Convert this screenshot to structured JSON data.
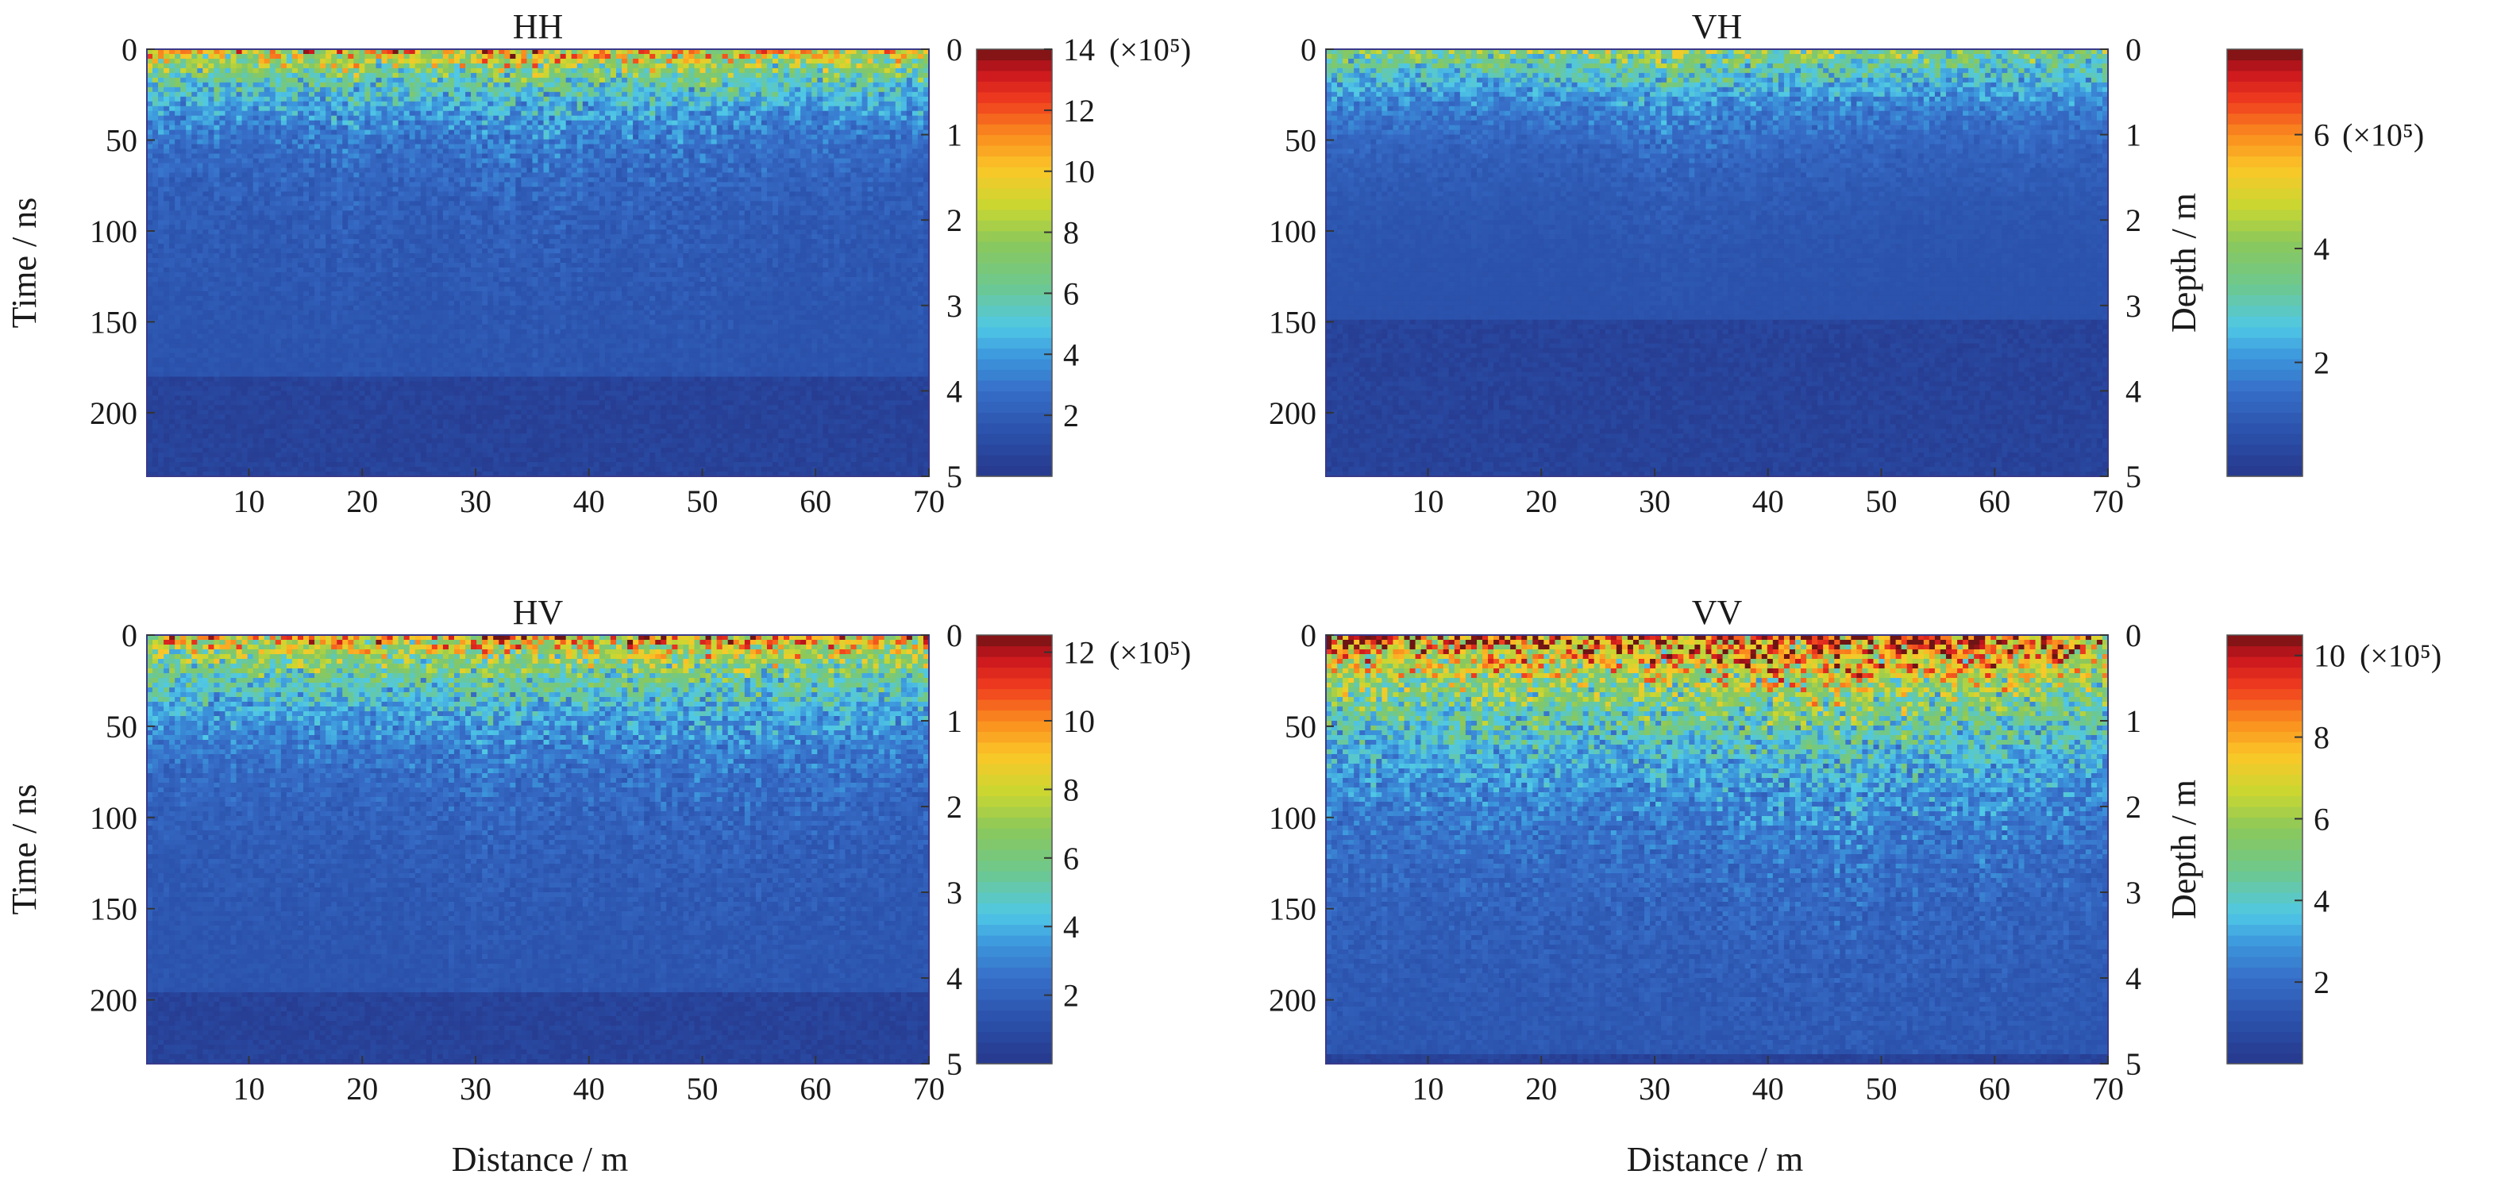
{
  "figure": {
    "xlabel": "Distance / m"
  },
  "chart_data": [
    {
      "type": "heatmap",
      "title": "HH",
      "ylabel": "Time / ns",
      "y2label": "",
      "xlim": [
        1,
        70
      ],
      "ylim": [
        0,
        235
      ],
      "xticks": [
        10,
        20,
        30,
        40,
        50,
        60,
        70
      ],
      "yticks": [
        0,
        50,
        100,
        150,
        200
      ],
      "depth_ticks": [
        0,
        1,
        2,
        3,
        4,
        5
      ],
      "colorbar": {
        "min": 0,
        "max": 14,
        "ticks": [
          2,
          4,
          6,
          8,
          10,
          12,
          14
        ],
        "scale_label": "(×10⁵)",
        "scale_at": 14
      },
      "profile": {
        "top_peak": 0.6,
        "top_depth": 22,
        "mid": 0.22,
        "mid_decay": 85,
        "floor_start": 180,
        "hot": [
          [
            35,
            0.12
          ],
          [
            48,
            0.1
          ],
          [
            20,
            0.06
          ]
        ]
      }
    },
    {
      "type": "heatmap",
      "title": "VH",
      "ylabel": "",
      "y2label": "Depth / m",
      "xlim": [
        1,
        70
      ],
      "ylim": [
        0,
        235
      ],
      "xticks": [
        10,
        20,
        30,
        40,
        50,
        60,
        70
      ],
      "yticks": [
        0,
        50,
        100,
        150,
        200
      ],
      "depth_ticks": [
        0,
        1,
        2,
        3,
        4,
        5
      ],
      "colorbar": {
        "min": 0,
        "max": 7.5,
        "ticks": [
          2,
          4,
          6
        ],
        "scale_label": "(×10⁵)",
        "scale_at": 6
      },
      "profile": {
        "top_peak": 0.42,
        "top_depth": 25,
        "mid": 0.16,
        "mid_decay": 55,
        "floor_start": 150,
        "hot": [
          [
            32,
            0.16
          ],
          [
            45,
            0.06
          ]
        ]
      }
    },
    {
      "type": "heatmap",
      "title": "HV",
      "ylabel": "Time / ns",
      "y2label": "",
      "xlim": [
        1,
        70
      ],
      "ylim": [
        0,
        235
      ],
      "xticks": [
        10,
        20,
        30,
        40,
        50,
        60,
        70
      ],
      "yticks": [
        0,
        50,
        100,
        150,
        200
      ],
      "depth_ticks": [
        0,
        1,
        2,
        3,
        4,
        5
      ],
      "colorbar": {
        "min": 0,
        "max": 12.5,
        "ticks": [
          2,
          4,
          6,
          8,
          10,
          12
        ],
        "scale_label": "(×10⁵)",
        "scale_at": 12
      },
      "profile": {
        "top_peak": 0.62,
        "top_depth": 30,
        "mid": 0.24,
        "mid_decay": 95,
        "floor_start": 195,
        "hot": [
          [
            33,
            0.14
          ],
          [
            50,
            0.12
          ],
          [
            62,
            0.08
          ]
        ]
      }
    },
    {
      "type": "heatmap",
      "title": "VV",
      "ylabel": "",
      "y2label": "Depth / m",
      "xlim": [
        1,
        70
      ],
      "ylim": [
        0,
        235
      ],
      "xticks": [
        10,
        20,
        30,
        40,
        50,
        60,
        70
      ],
      "yticks": [
        0,
        50,
        100,
        150,
        200
      ],
      "depth_ticks": [
        0,
        1,
        2,
        3,
        4,
        5
      ],
      "colorbar": {
        "min": 0,
        "max": 10.5,
        "ticks": [
          2,
          4,
          6,
          8,
          10
        ],
        "scale_label": "(×10⁵)",
        "scale_at": 10
      },
      "profile": {
        "top_peak": 0.7,
        "top_depth": 45,
        "mid": 0.34,
        "mid_decay": 110,
        "floor_start": 230,
        "hot": [
          [
            47,
            0.22
          ],
          [
            35,
            0.1
          ],
          [
            60,
            0.1
          ]
        ]
      }
    }
  ]
}
